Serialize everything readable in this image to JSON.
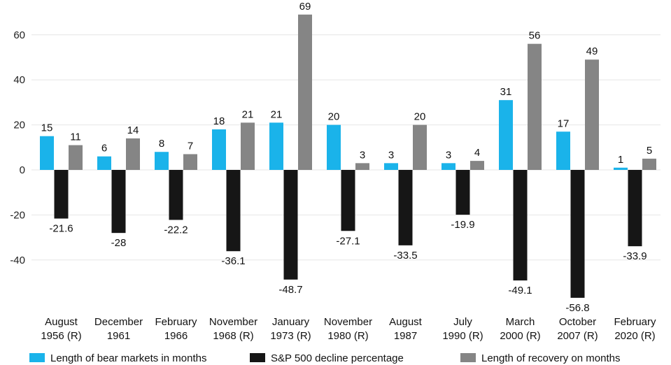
{
  "chart_data": {
    "type": "bar",
    "categories": [
      [
        "August",
        "1956 (R)"
      ],
      [
        "December",
        "1961"
      ],
      [
        "February",
        "1966"
      ],
      [
        "November",
        "1968 (R)"
      ],
      [
        "January",
        "1973 (R)"
      ],
      [
        "November",
        "1980 (R)"
      ],
      [
        "August",
        "1987"
      ],
      [
        "July",
        "1990 (R)"
      ],
      [
        "March",
        "2000 (R)"
      ],
      [
        "October",
        "2007 (R)"
      ],
      [
        "February",
        "2020 (R)"
      ]
    ],
    "series": [
      {
        "name": "Length of bear markets in months",
        "color": "#1ab3ea",
        "values": [
          15,
          6,
          8,
          18,
          21,
          20,
          3,
          3,
          31,
          17,
          1
        ],
        "labels": [
          "15",
          "6",
          "8",
          "18",
          "21",
          "20",
          "3",
          "3",
          "31",
          "17",
          "1"
        ]
      },
      {
        "name": "S&P 500 decline percentage",
        "color": "#161616",
        "values": [
          -21.6,
          -28,
          -22.2,
          -36.1,
          -48.7,
          -27.1,
          -33.5,
          -19.9,
          -49.1,
          -56.8,
          -33.9
        ],
        "labels": [
          "-21.6",
          "-28",
          "-22.2",
          "-36.1",
          "-48.7",
          "-27.1",
          "-33.5",
          "-19.9",
          "-49.1",
          "-56.8",
          "-33.9"
        ]
      },
      {
        "name": "Length of recovery on months",
        "color": "#858585",
        "values": [
          11,
          14,
          7,
          21,
          69,
          3,
          20,
          4,
          56,
          49,
          5
        ],
        "labels": [
          "11",
          "14",
          "7",
          "21",
          "69",
          "3",
          "20",
          "4",
          "56",
          "49",
          "5"
        ]
      }
    ],
    "yticks": [
      60,
      40,
      20,
      0,
      -20,
      -40
    ],
    "ytick_labels": [
      "60",
      "40",
      "20",
      "0",
      "-20",
      "-40"
    ],
    "ylim": [
      -60,
      70
    ],
    "grid": true,
    "legend_position": "bottom",
    "title": "",
    "xlabel": "",
    "ylabel": ""
  }
}
